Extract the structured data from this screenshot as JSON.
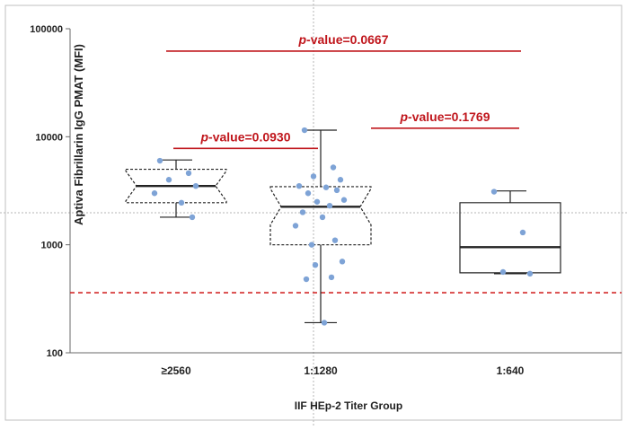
{
  "chart_data": {
    "type": "box",
    "xlabel": "IIF HEp-2 Titer Group",
    "ylabel": "Aptiva Fibrillarin IgG PMAT (MFI)",
    "yscale": "log",
    "ylim": [
      100,
      100000
    ],
    "yticks": [
      "100",
      "1000",
      "10000",
      "100000"
    ],
    "yticks_values": [
      100,
      1000,
      10000,
      100000
    ],
    "categories": [
      "≥2560",
      "1:1280",
      "1:640"
    ],
    "boxes": [
      {
        "category": "≥2560",
        "min": 1800,
        "q1": 2450,
        "median": 3500,
        "q3": 5000,
        "max": 6100,
        "notched": true
      },
      {
        "category": "1:1280",
        "min": 190,
        "q1": 1000,
        "median": 2250,
        "q3": 3450,
        "max": 11500,
        "notched": true
      },
      {
        "category": "1:640",
        "min": 540,
        "q1": 550,
        "median": 950,
        "q3": 2450,
        "max": 3150,
        "notched": false
      }
    ],
    "points": [
      {
        "category": "≥2560",
        "values": [
          6000,
          4600,
          4000,
          3500,
          3000,
          2450,
          1800
        ]
      },
      {
        "category": "1:1280",
        "values": [
          11500,
          5200,
          4300,
          4000,
          3500,
          3400,
          3200,
          3000,
          2600,
          2500,
          2300,
          2000,
          1800,
          1500,
          1100,
          1000,
          700,
          650,
          500,
          480,
          190
        ]
      },
      {
        "category": "1:640",
        "values": [
          3100,
          1300,
          560,
          540
        ]
      }
    ],
    "cutoff": 360,
    "annotations": [
      {
        "prefix": "p",
        "text": "-value=0.0667",
        "from": "≥2560",
        "to": "1:640",
        "y": 62000
      },
      {
        "prefix": "p",
        "text": "-value=0.0930",
        "from": "≥2560",
        "to": "1:1280",
        "y": 7800
      },
      {
        "prefix": "p",
        "text": "-value=0.1769",
        "from": "1:1280",
        "to": "1:640",
        "y": 12000
      }
    ],
    "colors": {
      "points": "#7ea3d6",
      "annotation": "#c0161c",
      "cutoff": "#d42a2a",
      "box": "#222222"
    }
  }
}
